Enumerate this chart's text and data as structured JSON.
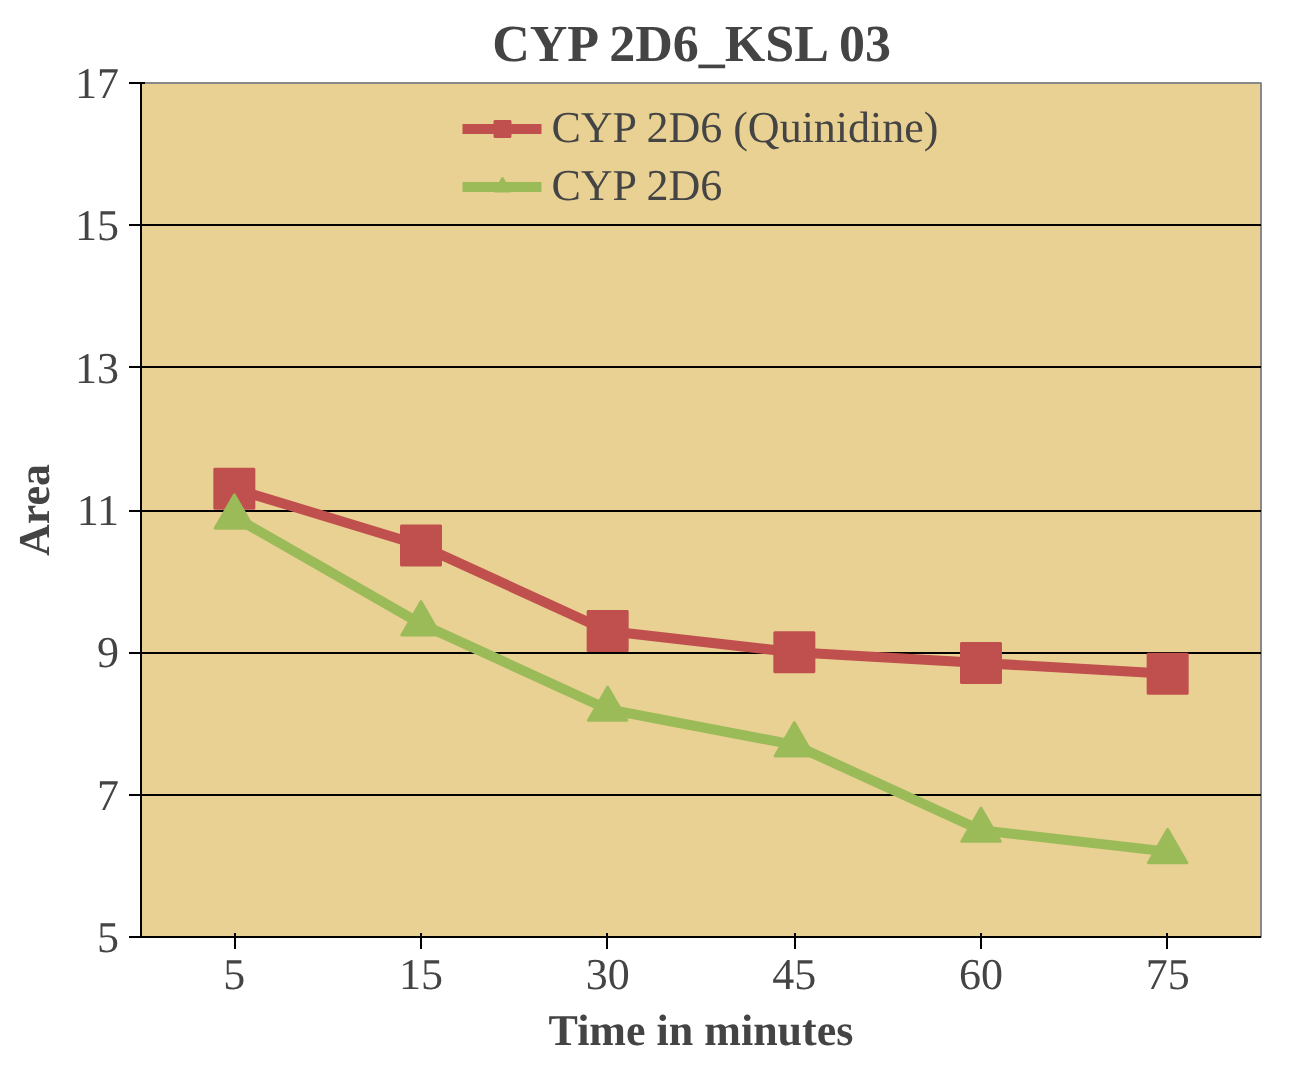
{
  "chart_data": {
    "type": "line",
    "title": "CYP  2D6_KSL 03",
    "xlabel": "Time in minutes",
    "ylabel": "Area",
    "categories": [
      "5",
      "15",
      "30",
      "45",
      "60",
      "75"
    ],
    "series": [
      {
        "name": "CYP 2D6 (Quinidine)",
        "color": "#c0504d",
        "marker": "square",
        "values": [
          11.3,
          10.5,
          9.3,
          9.0,
          8.85,
          8.7
        ]
      },
      {
        "name": "CYP 2D6",
        "color": "#9bbb59",
        "marker": "triangle",
        "values": [
          10.9,
          9.4,
          8.2,
          7.7,
          6.5,
          6.2
        ]
      }
    ],
    "ylim": [
      5,
      17
    ],
    "yticks": [
      5,
      7,
      9,
      11,
      13,
      15,
      17
    ],
    "grid": "y",
    "legend": "top",
    "line_style": "solid"
  }
}
